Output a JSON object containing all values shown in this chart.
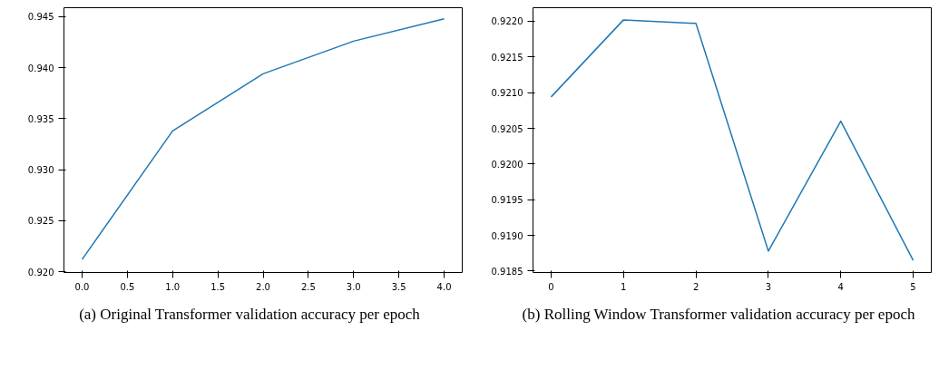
{
  "chart_data": [
    {
      "type": "line",
      "x": [
        0,
        1,
        2,
        3,
        4
      ],
      "series": [
        {
          "color": "#1f77b4",
          "values": [
            0.9212,
            0.9338,
            0.9394,
            0.9426,
            0.9448
          ]
        }
      ],
      "xlim": [
        -0.2,
        4.2
      ],
      "ylim": [
        0.91992,
        0.94588
      ],
      "xticks": [
        {
          "value": 0,
          "label": "0.0"
        },
        {
          "value": 0.5,
          "label": "0.5"
        },
        {
          "value": 1,
          "label": "1.0"
        },
        {
          "value": 1.5,
          "label": "1.5"
        },
        {
          "value": 2,
          "label": "2.0"
        },
        {
          "value": 2.5,
          "label": "2.5"
        },
        {
          "value": 3,
          "label": "3.0"
        },
        {
          "value": 3.5,
          "label": "3.5"
        },
        {
          "value": 4,
          "label": "4.0"
        }
      ],
      "yticks": [
        {
          "value": 0.92,
          "label": "0.920"
        },
        {
          "value": 0.925,
          "label": "0.925"
        },
        {
          "value": 0.93,
          "label": "0.930"
        },
        {
          "value": 0.935,
          "label": "0.935"
        },
        {
          "value": 0.94,
          "label": "0.940"
        },
        {
          "value": 0.945,
          "label": "0.945"
        }
      ],
      "grid": false,
      "annotations": [
        "(a) Original Transformer validation accuracy per epoch"
      ]
    },
    {
      "type": "line",
      "x": [
        0,
        1,
        2,
        3,
        4,
        5
      ],
      "series": [
        {
          "color": "#1f77b4",
          "values": [
            0.92094,
            0.92202,
            0.92197,
            0.91878,
            0.9206,
            0.91865
          ]
        }
      ],
      "xlim": [
        -0.25,
        5.25
      ],
      "ylim": [
        0.91848,
        0.92219
      ],
      "xticks": [
        0,
        1,
        2,
        3,
        4,
        5
      ],
      "yticks": [
        {
          "value": 0.9185,
          "label": "0.9185"
        },
        {
          "value": 0.919,
          "label": "0.9190"
        },
        {
          "value": 0.9195,
          "label": "0.9195"
        },
        {
          "value": 0.92,
          "label": "0.9200"
        },
        {
          "value": 0.9205,
          "label": "0.9205"
        },
        {
          "value": 0.921,
          "label": "0.9210"
        },
        {
          "value": 0.9215,
          "label": "0.9215"
        },
        {
          "value": 0.922,
          "label": "0.9220"
        }
      ],
      "grid": false,
      "annotations": [
        "(b) Rolling Window Transformer validation accuracy per epoch"
      ]
    }
  ]
}
